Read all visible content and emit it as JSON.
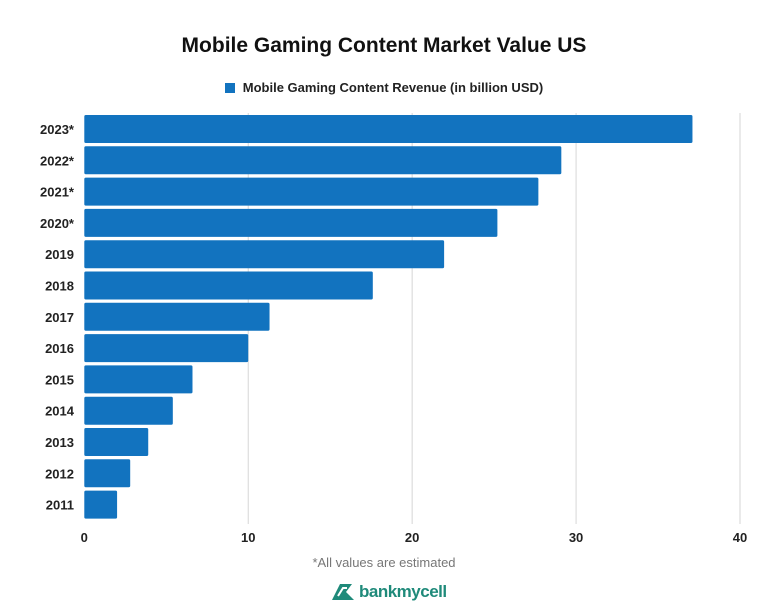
{
  "chart_data": {
    "type": "bar",
    "orientation": "horizontal",
    "title": "Mobile Gaming Content Market Value US",
    "categories": [
      "2023*",
      "2022*",
      "2021*",
      "2020*",
      "2019",
      "2018",
      "2017",
      "2016",
      "2015",
      "2014",
      "2013",
      "2012",
      "2011"
    ],
    "series": [
      {
        "name": "Mobile Gaming Content Revenue (in billion USD)",
        "values": [
          37.1,
          29.1,
          27.7,
          25.2,
          21.95,
          17.6,
          11.3,
          10.0,
          6.6,
          5.4,
          3.9,
          2.8,
          2.0
        ]
      }
    ],
    "xlim": [
      0,
      40
    ],
    "xticks": [
      "0",
      "10",
      "20",
      "30",
      "40"
    ],
    "grid": true,
    "legend_position": "top",
    "color": "#1273bf",
    "footnote": "*All values are estimated"
  },
  "logo": {
    "text": "bankmycell",
    "color": "#1f8a7a"
  }
}
